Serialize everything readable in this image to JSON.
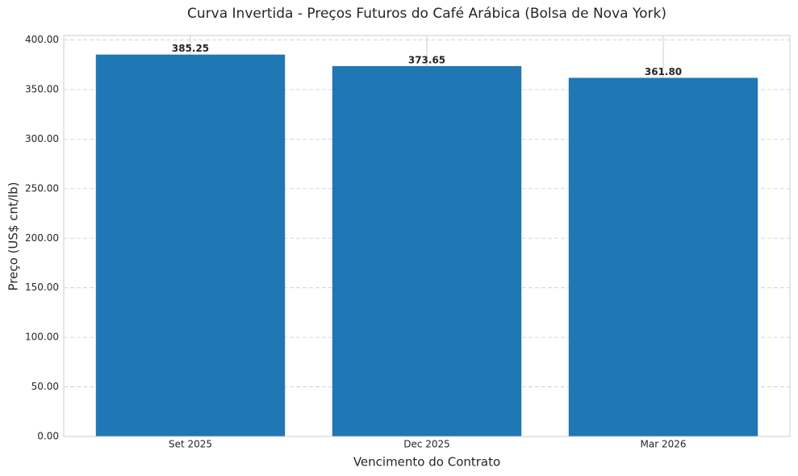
{
  "chart_data": {
    "type": "bar",
    "title": "Curva Invertida - Preços Futuros do Café Arábica (Bolsa de Nova York)",
    "x_label": "Vencimento do Contrato",
    "y_label": "Preço (US$ cnt/lb)",
    "categories": [
      "Set 2025",
      "Dec 2025",
      "Mar 2026"
    ],
    "values": [
      385.25,
      373.65,
      361.8
    ],
    "value_labels": [
      "385.25",
      "373.65",
      "361.80"
    ],
    "color": "#1f77b4",
    "ylim": [
      0,
      404.51
    ],
    "yticks": [
      {
        "value": 0,
        "label": "0.00"
      },
      {
        "value": 50,
        "label": "50.00"
      },
      {
        "value": 100,
        "label": "100.00"
      },
      {
        "value": 150,
        "label": "150.00"
      },
      {
        "value": 200,
        "label": "200.00"
      },
      {
        "value": 250,
        "label": "250.00"
      },
      {
        "value": 300,
        "label": "300.00"
      },
      {
        "value": 350,
        "label": "350.00"
      },
      {
        "value": 400,
        "label": "400.00"
      }
    ],
    "grid": true
  }
}
